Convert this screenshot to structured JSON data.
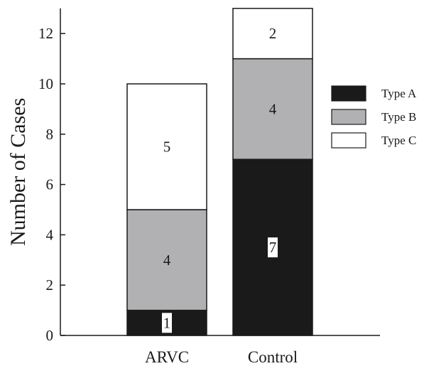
{
  "chart_data": {
    "type": "bar",
    "stacked": true,
    "title": "",
    "xlabel": "",
    "ylabel": "Number of Cases",
    "ylim": [
      0,
      13
    ],
    "yticks": [
      0,
      2,
      4,
      6,
      8,
      10,
      12
    ],
    "categories": [
      "ARVC",
      "Control"
    ],
    "series": [
      {
        "name": "Type A",
        "values": [
          1,
          7
        ],
        "color": "#1a1a1a"
      },
      {
        "name": "Type B",
        "values": [
          4,
          4
        ],
        "color": "#b1b1b3"
      },
      {
        "name": "Type C",
        "values": [
          5,
          2
        ],
        "color": "#ffffff"
      }
    ],
    "grid": false,
    "legend_position": "right"
  }
}
